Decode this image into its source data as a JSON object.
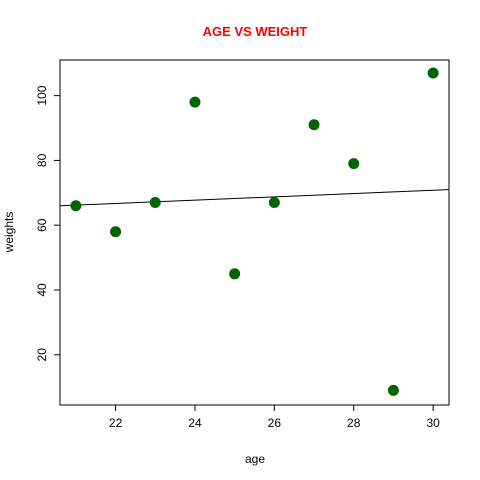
{
  "chart_data": {
    "type": "scatter",
    "title": "AGE VS WEIGHT",
    "xlabel": "age",
    "ylabel": "weights",
    "xlim": [
      20.6,
      30.4
    ],
    "ylim": [
      4.5,
      111.0
    ],
    "x_ticks": [
      22,
      24,
      26,
      28,
      30
    ],
    "y_ticks": [
      20,
      40,
      60,
      80,
      100
    ],
    "grid": false,
    "legend": "none",
    "colors": {
      "title": "#ff0000",
      "points": "#006400",
      "line": "#000000",
      "axis": "#000000"
    },
    "points": [
      {
        "x": 21,
        "y": 66
      },
      {
        "x": 22,
        "y": 58
      },
      {
        "x": 23,
        "y": 67
      },
      {
        "x": 24,
        "y": 98
      },
      {
        "x": 25,
        "y": 45
      },
      {
        "x": 26,
        "y": 67
      },
      {
        "x": 27,
        "y": 91
      },
      {
        "x": 28,
        "y": 79
      },
      {
        "x": 29,
        "y": 9
      },
      {
        "x": 30,
        "y": 107
      }
    ],
    "regression_line": {
      "x": [
        20.6,
        30.4
      ],
      "y": [
        66.0,
        71.0
      ]
    }
  }
}
